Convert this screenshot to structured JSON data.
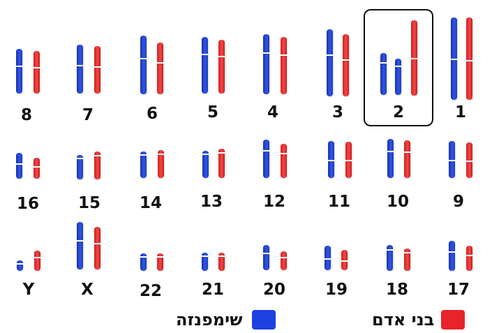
{
  "pairs": [
    {
      "label": "1",
      "blue": "tall",
      "red": "tall"
    },
    {
      "label": "2",
      "blue": "2A, 2B",
      "red": "2"
    },
    {
      "label": "3"
    },
    {
      "label": "4"
    },
    {
      "label": "5"
    },
    {
      "label": "6"
    },
    {
      "label": "7"
    },
    {
      "label": "8"
    },
    {
      "label": "9"
    },
    {
      "label": "10"
    },
    {
      "label": "11"
    },
    {
      "label": "12"
    },
    {
      "label": "13"
    },
    {
      "label": "14"
    },
    {
      "label": "15"
    },
    {
      "label": "16"
    },
    {
      "label": "17"
    },
    {
      "label": "18"
    },
    {
      "label": "19"
    },
    {
      "label": "20"
    },
    {
      "label": "21"
    },
    {
      "label": "22"
    },
    {
      "label": "X"
    },
    {
      "label": "Y"
    }
  ],
  "legend": {
    "human": {
      "label": "בני אדם",
      "color": "#e8232a"
    },
    "chimp": {
      "label": "שימפנזה",
      "color": "#1f3fe0"
    }
  }
}
